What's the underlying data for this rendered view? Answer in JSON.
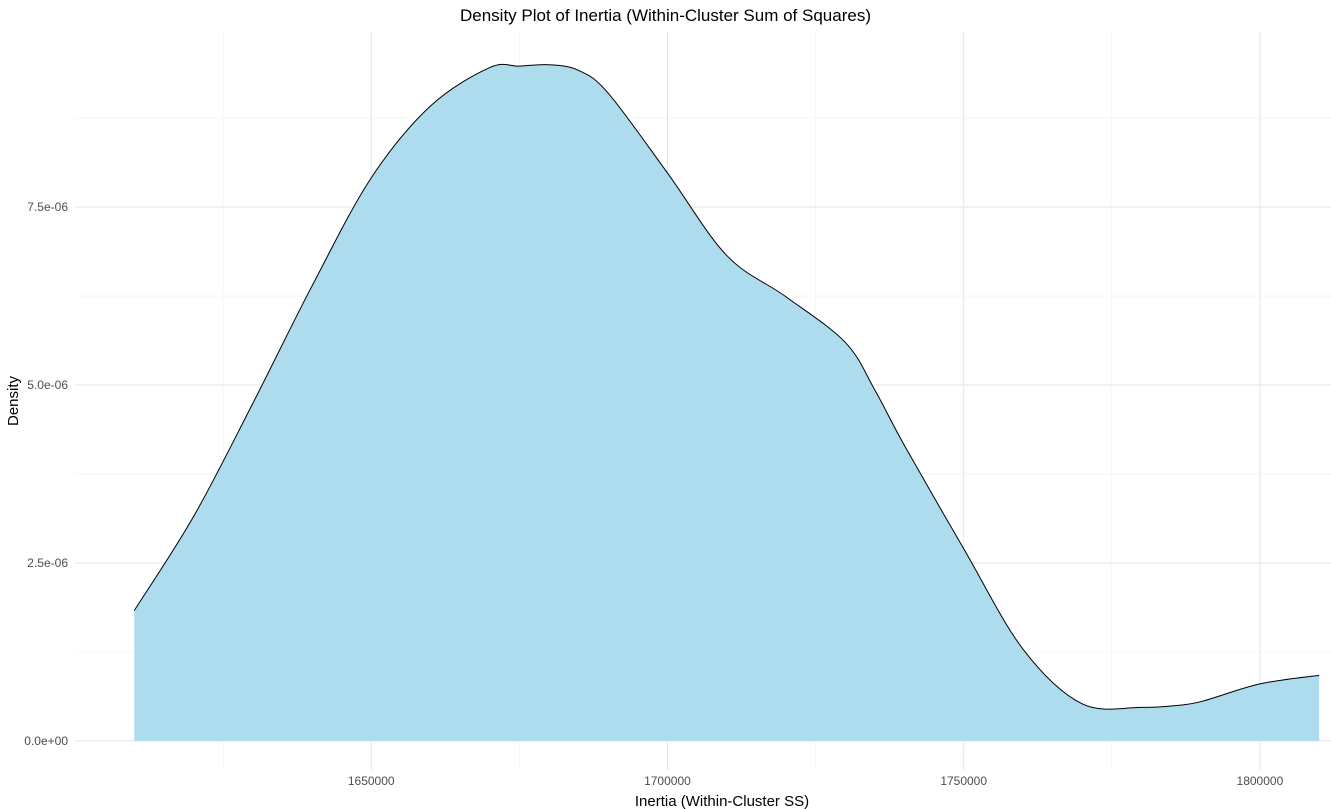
{
  "chart_data": {
    "type": "area",
    "title": "Density Plot of Inertia (Within-Cluster Sum of Squares)",
    "xlabel": "Inertia (Within-Cluster SS)",
    "ylabel": "Density",
    "xlim": [
      1600000,
      1812000
    ],
    "ylim": [
      -4.1e-07,
      9.96e-06
    ],
    "x_ticks": [
      1650000,
      1700000,
      1750000,
      1800000
    ],
    "x_tick_labels": [
      "1650000",
      "1700000",
      "1750000",
      "1800000"
    ],
    "y_ticks": [
      0,
      2.5e-06,
      5e-06,
      7.5e-06
    ],
    "y_tick_labels": [
      "0.0e+00",
      "2.5e-06",
      "5.0e-06",
      "7.5e-06"
    ],
    "grid": true,
    "fill_color": "#ADDCEF",
    "line_color": "#000000",
    "series": [
      {
        "x": [
          1610000,
          1620000,
          1630000,
          1640000,
          1650000,
          1660000,
          1670000,
          1675000,
          1680000,
          1685000,
          1690000,
          1700000,
          1710000,
          1720000,
          1730000,
          1735000,
          1740000,
          1750000,
          1760000,
          1770000,
          1780000,
          1785000,
          1790000,
          1800000,
          1810000
        ],
        "y": [
          1.83e-06,
          3.15e-06,
          4.74e-06,
          6.39e-06,
          7.91e-06,
          8.92e-06,
          9.46e-06,
          9.48e-06,
          9.5e-06,
          9.42e-06,
          9.1e-06,
          7.98e-06,
          6.82e-06,
          6.24e-06,
          5.6e-06,
          4.93e-06,
          4.15e-06,
          2.7e-06,
          1.29e-06,
          5.2e-07,
          4.7e-07,
          4.9e-07,
          5.5e-07,
          8e-07,
          9.2e-07
        ]
      }
    ]
  }
}
